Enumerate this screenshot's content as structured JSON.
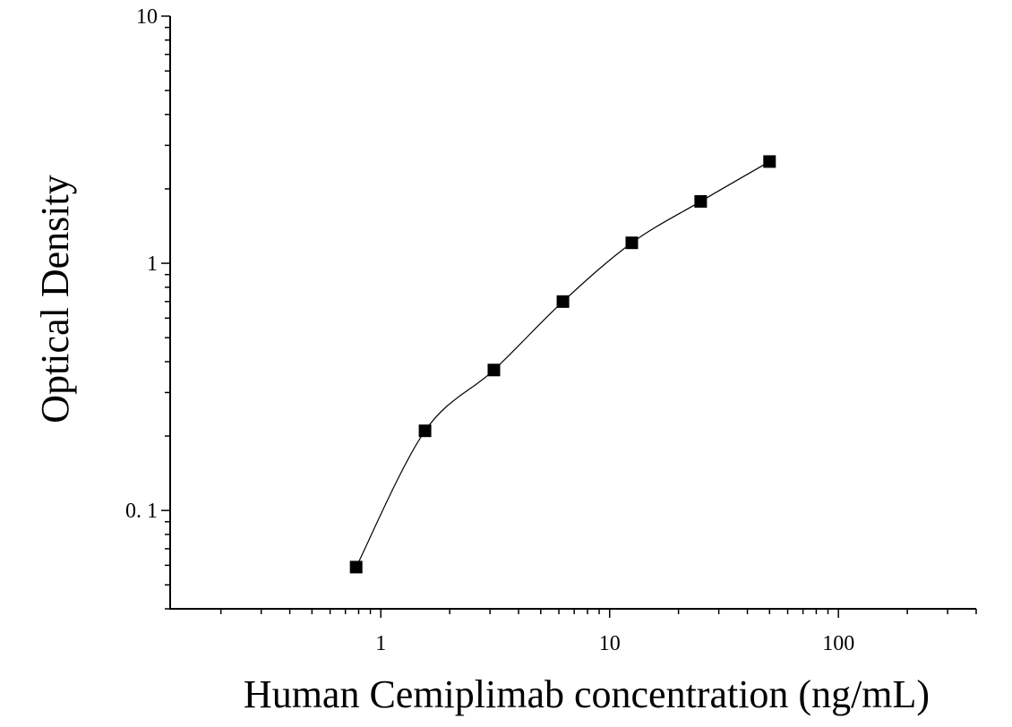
{
  "chart_data": {
    "type": "scatter",
    "xlabel": "Human Cemiplimab concentration (ng/mL)",
    "ylabel": "Optical Density",
    "x_scale": "log",
    "y_scale": "log",
    "xlim": [
      0.12,
      400
    ],
    "ylim": [
      0.04,
      10
    ],
    "x_ticks": [
      {
        "value": 1,
        "label": "1"
      },
      {
        "value": 10,
        "label": "10"
      },
      {
        "value": 100,
        "label": "100"
      }
    ],
    "y_ticks": [
      {
        "value": 0.1,
        "label": "0. 1"
      },
      {
        "value": 1,
        "label": "1"
      },
      {
        "value": 10,
        "label": "10"
      }
    ],
    "grid": false,
    "marker": "square",
    "marker_color": "#000000",
    "curve": "fitted",
    "series": [
      {
        "x": [
          0.78,
          1.56,
          3.12,
          6.25,
          12.5,
          25,
          50
        ],
        "y": [
          0.059,
          0.21,
          0.37,
          0.7,
          1.21,
          1.78,
          2.58
        ]
      }
    ]
  }
}
